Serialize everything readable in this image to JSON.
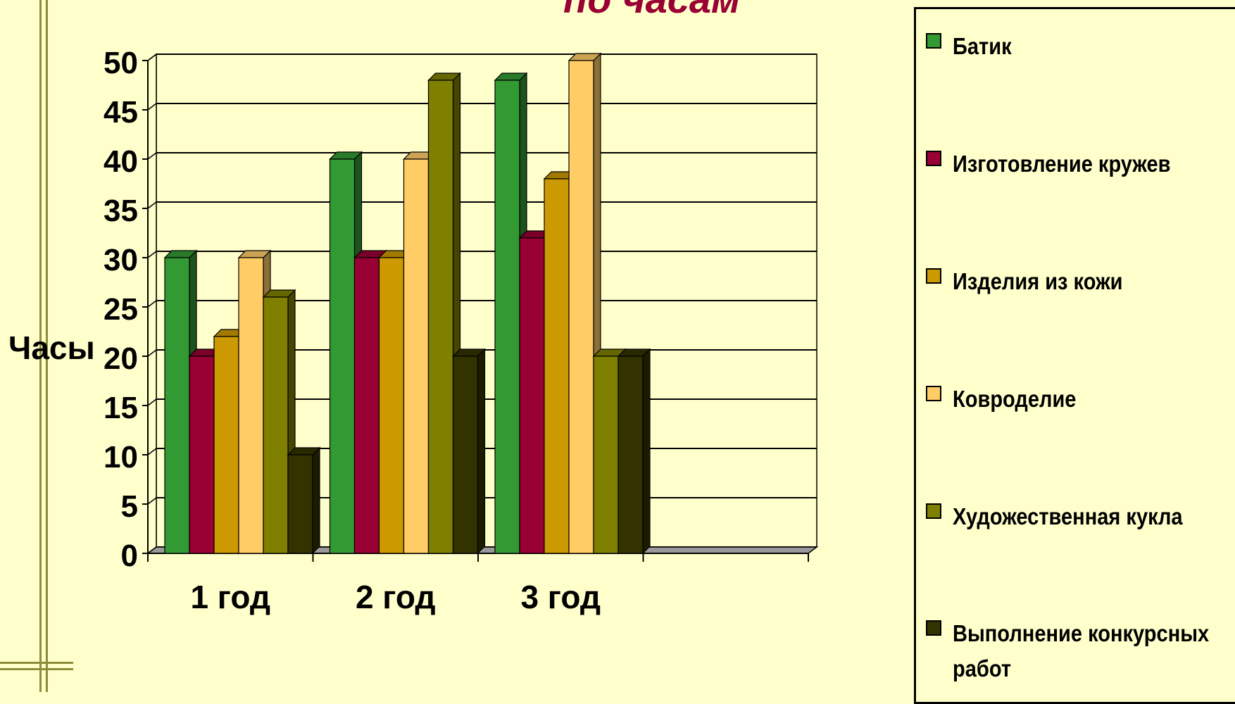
{
  "title_fragment": "по часам",
  "chart_data": {
    "type": "bar",
    "title": "по часам",
    "ylabel": "Часы",
    "xlabel": "",
    "ylim": [
      0,
      50
    ],
    "yticks": [
      0,
      5,
      10,
      15,
      20,
      25,
      30,
      35,
      40,
      45,
      50
    ],
    "categories": [
      "1 год",
      "2 год",
      "3 год",
      ""
    ],
    "grid": true,
    "legend_position": "right",
    "series": [
      {
        "name": "Батик",
        "values": [
          30,
          40,
          48,
          null
        ],
        "color": "#339933"
      },
      {
        "name": "Изготовление кружев",
        "values": [
          20,
          30,
          32,
          null
        ],
        "color": "#990033"
      },
      {
        "name": "Изделия из кожи",
        "values": [
          22,
          30,
          38,
          null
        ],
        "color": "#cc9900"
      },
      {
        "name": "Ковроделие",
        "values": [
          30,
          40,
          50,
          null
        ],
        "color": "#ffcc66"
      },
      {
        "name": "Художественная кукла",
        "values": [
          26,
          48,
          20,
          null
        ],
        "color": "#808000"
      },
      {
        "name": "Выполнение конкурсных работ",
        "values": [
          10,
          20,
          20,
          null
        ],
        "color": "#333300"
      }
    ]
  }
}
